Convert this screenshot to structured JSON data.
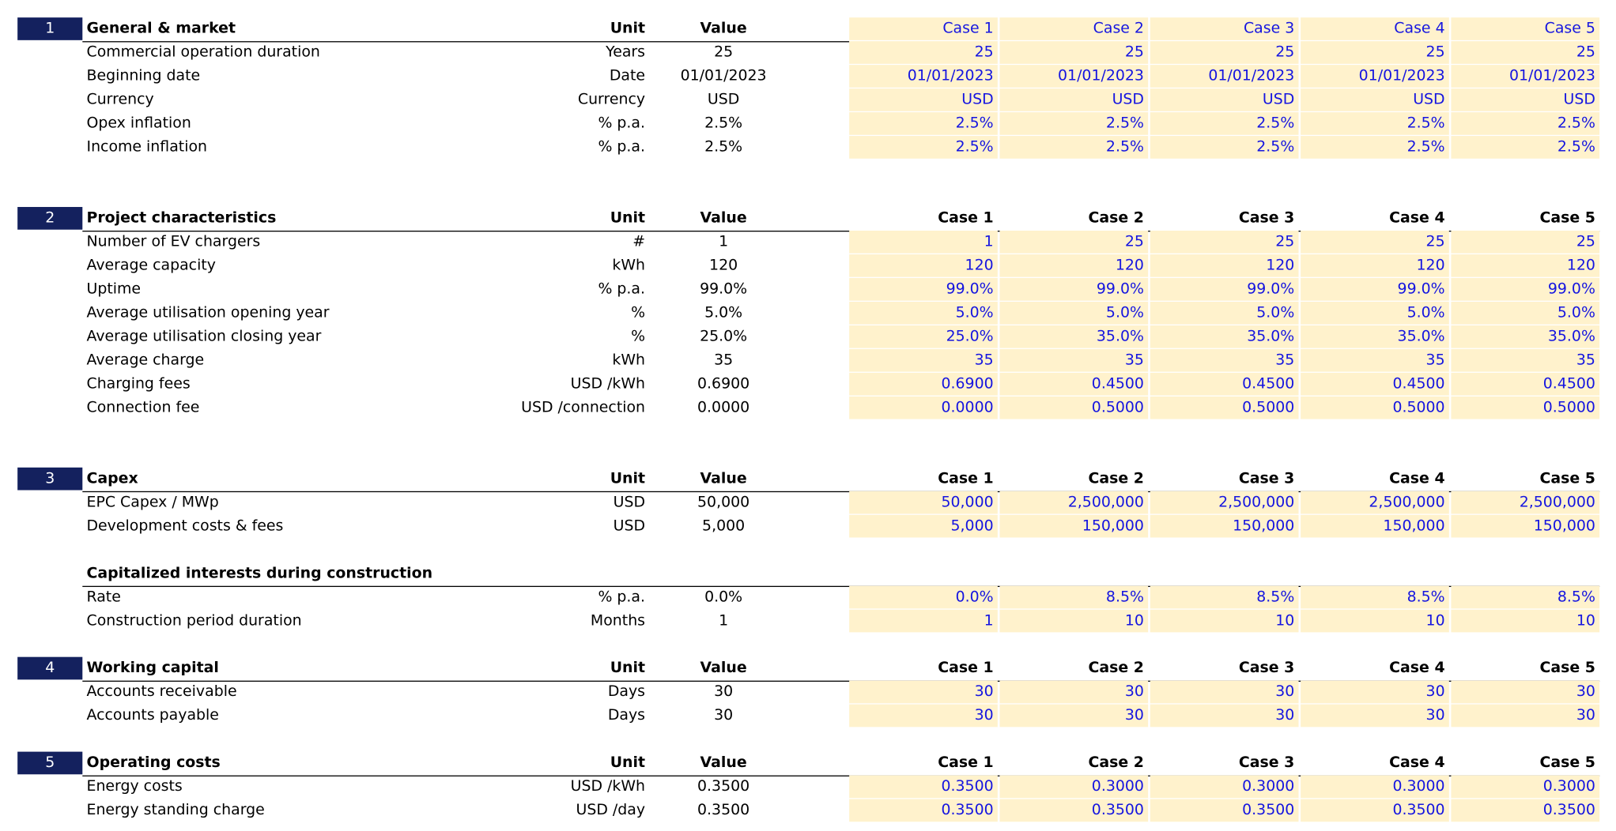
{
  "sections": [
    {
      "number": "1",
      "title": "General & market",
      "unit_header": "Unit",
      "value_header": "Value",
      "cases": [
        "Case 1",
        "Case 2",
        "Case 3",
        "Case 4",
        "Case 5"
      ],
      "rows": [
        {
          "label": "Commercial operation duration",
          "unit": "Years",
          "value": "25",
          "cases": [
            "25",
            "25",
            "25",
            "25",
            "25"
          ]
        },
        {
          "label": "Beginning date",
          "unit": "Date",
          "value": "01/01/2023",
          "cases": [
            "01/01/2023",
            "01/01/2023",
            "01/01/2023",
            "01/01/2023",
            "01/01/2023"
          ]
        },
        {
          "label": "Currency",
          "unit": "Currency",
          "value": "USD",
          "cases": [
            "USD",
            "USD",
            "USD",
            "USD",
            "USD"
          ]
        },
        {
          "label": "Opex inflation",
          "unit": "% p.a.",
          "value": "2.5%",
          "cases": [
            "2.5%",
            "2.5%",
            "2.5%",
            "2.5%",
            "2.5%"
          ]
        },
        {
          "label": "Income inflation",
          "unit": "% p.a.",
          "value": "2.5%",
          "cases": [
            "2.5%",
            "2.5%",
            "2.5%",
            "2.5%",
            "2.5%"
          ]
        }
      ]
    },
    {
      "number": "2",
      "title": "Project characteristics",
      "unit_header": "Unit",
      "value_header": "Value",
      "cases": [
        "Case 1",
        "Case 2",
        "Case 3",
        "Case 4",
        "Case 5"
      ],
      "rows": [
        {
          "label": "Number of EV chargers",
          "unit": "#",
          "value": "1",
          "cases": [
            "1",
            "25",
            "25",
            "25",
            "25"
          ]
        },
        {
          "label": "Average capacity",
          "unit": "kWh",
          "value": "120",
          "cases": [
            "120",
            "120",
            "120",
            "120",
            "120"
          ]
        },
        {
          "label": "Uptime",
          "unit": "% p.a.",
          "value": "99.0%",
          "cases": [
            "99.0%",
            "99.0%",
            "99.0%",
            "99.0%",
            "99.0%"
          ]
        },
        {
          "label": "Average utilisation opening year",
          "unit": "%",
          "value": "5.0%",
          "cases": [
            "5.0%",
            "5.0%",
            "5.0%",
            "5.0%",
            "5.0%"
          ]
        },
        {
          "label": "Average utilisation closing year",
          "unit": "%",
          "value": "25.0%",
          "cases": [
            "25.0%",
            "35.0%",
            "35.0%",
            "35.0%",
            "35.0%"
          ]
        },
        {
          "label": "Average charge",
          "unit": "kWh",
          "value": "35",
          "cases": [
            "35",
            "35",
            "35",
            "35",
            "35"
          ]
        },
        {
          "label": "Charging fees",
          "unit": "USD /kWh",
          "value": "0.6900",
          "cases": [
            "0.6900",
            "0.4500",
            "0.4500",
            "0.4500",
            "0.4500"
          ]
        },
        {
          "label": "Connection fee",
          "unit": "USD /connection",
          "value": "0.0000",
          "cases": [
            "0.0000",
            "0.5000",
            "0.5000",
            "0.5000",
            "0.5000"
          ]
        }
      ]
    },
    {
      "number": "3",
      "title": "Capex",
      "unit_header": "Unit",
      "value_header": "Value",
      "cases": [
        "Case 1",
        "Case 2",
        "Case 3",
        "Case 4",
        "Case 5"
      ],
      "rows": [
        {
          "label": "EPC Capex / MWp",
          "unit": "USD",
          "value": "50,000",
          "cases": [
            "50,000",
            "2,500,000",
            "2,500,000",
            "2,500,000",
            "2,500,000"
          ]
        },
        {
          "label": "Development costs & fees",
          "unit": "USD",
          "value": "5,000",
          "cases": [
            "5,000",
            "150,000",
            "150,000",
            "150,000",
            "150,000"
          ]
        }
      ],
      "subsection": {
        "title": "Capitalized interests during construction",
        "rows": [
          {
            "label": "Rate",
            "unit": "% p.a.",
            "value": "0.0%",
            "cases": [
              "0.0%",
              "8.5%",
              "8.5%",
              "8.5%",
              "8.5%"
            ]
          },
          {
            "label": "Construction period duration",
            "unit": "Months",
            "value": "1",
            "cases": [
              "1",
              "10",
              "10",
              "10",
              "10"
            ]
          }
        ]
      }
    },
    {
      "number": "4",
      "title": "Working capital",
      "unit_header": "Unit",
      "value_header": "Value",
      "cases": [
        "Case 1",
        "Case 2",
        "Case 3",
        "Case 4",
        "Case 5"
      ],
      "rows": [
        {
          "label": "Accounts receivable",
          "unit": "Days",
          "value": "30",
          "cases": [
            "30",
            "30",
            "30",
            "30",
            "30"
          ]
        },
        {
          "label": "Accounts payable",
          "unit": "Days",
          "value": "30",
          "cases": [
            "30",
            "30",
            "30",
            "30",
            "30"
          ]
        }
      ]
    },
    {
      "number": "5",
      "title": "Operating costs",
      "unit_header": "Unit",
      "value_header": "Value",
      "cases": [
        "Case 1",
        "Case 2",
        "Case 3",
        "Case 4",
        "Case 5"
      ],
      "rows": [
        {
          "label": "Energy costs",
          "unit": "USD /kWh",
          "value": "0.3500",
          "cases": [
            "0.3500",
            "0.3000",
            "0.3000",
            "0.3000",
            "0.3000"
          ]
        },
        {
          "label": "Energy standing charge",
          "unit": "USD /day",
          "value": "0.3500",
          "cases": [
            "0.3500",
            "0.3500",
            "0.3500",
            "0.3500",
            "0.3500"
          ]
        }
      ]
    }
  ]
}
